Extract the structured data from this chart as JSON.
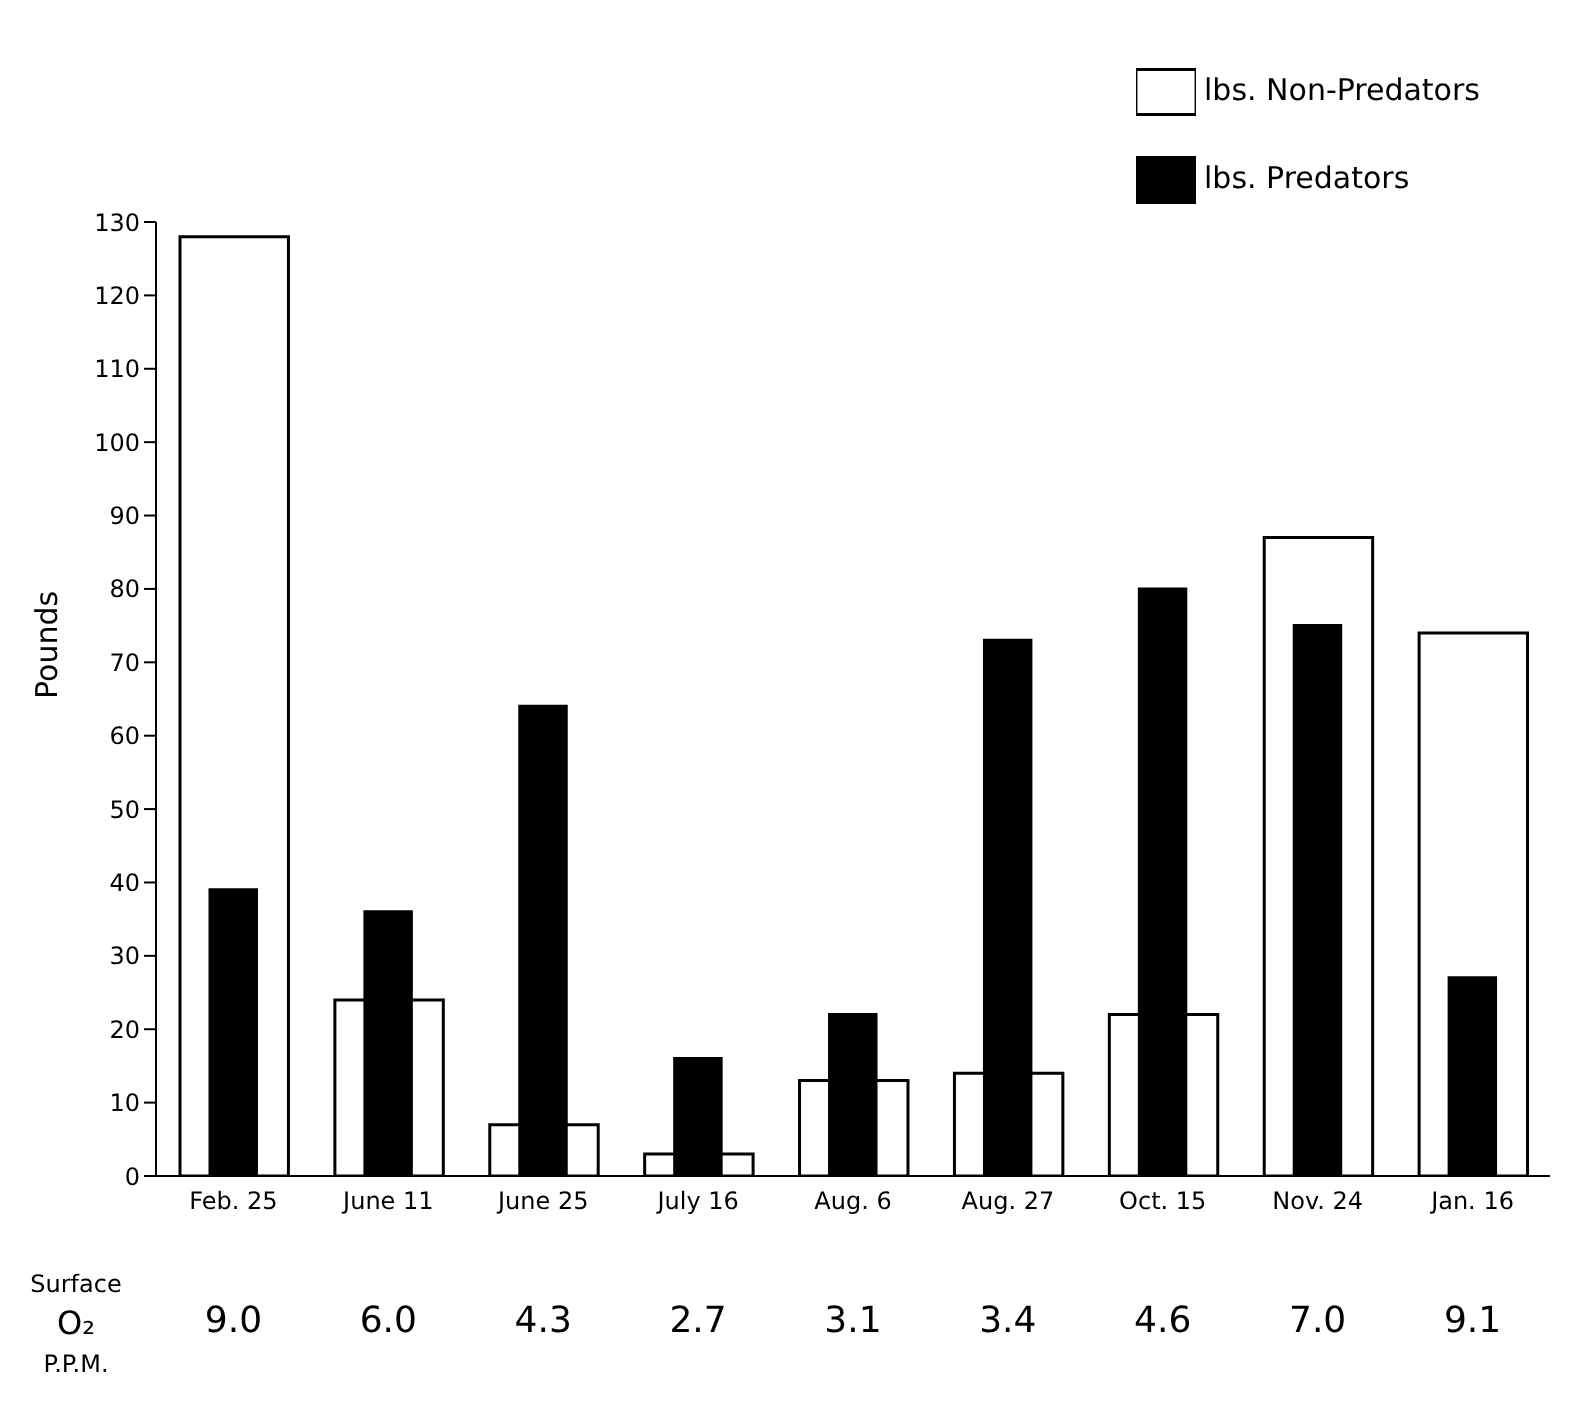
{
  "chart_data": {
    "type": "bar",
    "ylabel": "Pounds",
    "categories": [
      "Feb. 25",
      "June 11",
      "June 25",
      "July 16",
      "Aug. 6",
      "Aug. 27",
      "Oct. 15",
      "Nov. 24",
      "Jan. 16"
    ],
    "series": [
      {
        "name": "lbs. Non-Predators",
        "color": "#ffffff",
        "values": [
          128,
          24,
          7,
          3,
          13,
          14,
          22,
          87,
          74
        ]
      },
      {
        "name": "lbs. Predators",
        "color": "#000000",
        "values": [
          39,
          36,
          64,
          16,
          22,
          73,
          80,
          75,
          27
        ]
      }
    ],
    "ylim": [
      0,
      130
    ],
    "yticks": [
      0,
      10,
      20,
      30,
      40,
      50,
      60,
      70,
      80,
      90,
      100,
      110,
      120,
      130
    ],
    "grid": false,
    "legend": "top right",
    "annotations": [
      "Surface O₂ P.P.M.",
      "9.0",
      "6.0",
      "4.3",
      "2.7",
      "3.1",
      "3.4",
      "4.6",
      "7.0",
      "9.1"
    ]
  }
}
